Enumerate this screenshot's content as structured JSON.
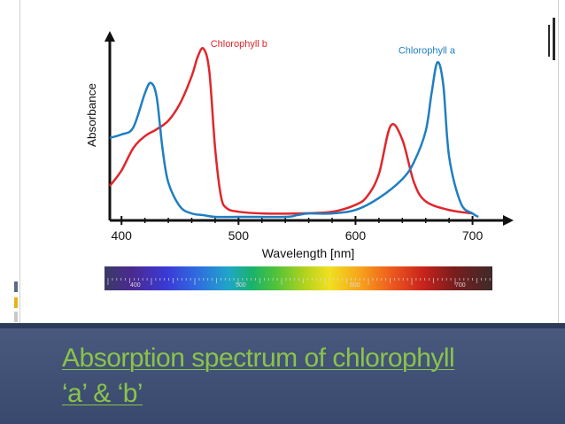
{
  "slide": {
    "title": "Absorption spectrum of chlorophyll  ‘a’  &  ‘b’"
  },
  "colors": {
    "chlorophyll_b": "#e0262b",
    "chlorophyll_a": "#1f7ec2",
    "title_text": "#8bc34a",
    "banner": "#3f5075",
    "axis": "#111111"
  },
  "chart_data": {
    "type": "line",
    "title": "",
    "xlabel": "Wavelength [nm]",
    "ylabel": "Absorbance",
    "xlim": [
      390,
      720
    ],
    "ylim": [
      0,
      1
    ],
    "xticks": [
      400,
      500,
      600,
      700
    ],
    "yticks": [],
    "grid": false,
    "series": [
      {
        "name": "Chlorophyll b",
        "label": "Chlorophyll b",
        "color": "#e0262b",
        "x": [
          390,
          400,
          410,
          420,
          430,
          440,
          450,
          460,
          465,
          470,
          475,
          480,
          485,
          490,
          500,
          520,
          550,
          580,
          600,
          610,
          620,
          630,
          640,
          650,
          660,
          680,
          700
        ],
        "y": [
          0.18,
          0.27,
          0.4,
          0.47,
          0.51,
          0.56,
          0.66,
          0.82,
          0.93,
          0.98,
          0.85,
          0.4,
          0.12,
          0.05,
          0.03,
          0.02,
          0.02,
          0.03,
          0.07,
          0.12,
          0.25,
          0.53,
          0.45,
          0.2,
          0.09,
          0.04,
          0.02
        ]
      },
      {
        "name": "Chlorophyll a",
        "label": "Chlorophyll a",
        "color": "#1f7ec2",
        "x": [
          390,
          400,
          410,
          420,
          425,
          430,
          435,
          440,
          450,
          460,
          470,
          480,
          500,
          540,
          550,
          560,
          580,
          600,
          620,
          640,
          650,
          660,
          665,
          670,
          675,
          680,
          690,
          700,
          705
        ],
        "y": [
          0.46,
          0.48,
          0.52,
          0.72,
          0.78,
          0.7,
          0.4,
          0.2,
          0.06,
          0.02,
          0.01,
          0.0,
          0.0,
          0.0,
          0.01,
          0.02,
          0.02,
          0.04,
          0.11,
          0.22,
          0.32,
          0.5,
          0.72,
          0.9,
          0.77,
          0.35,
          0.08,
          0.02,
          0.0
        ]
      }
    ],
    "spectrum_bar": {
      "labels": [
        "400",
        "500",
        "600",
        "700"
      ]
    }
  }
}
